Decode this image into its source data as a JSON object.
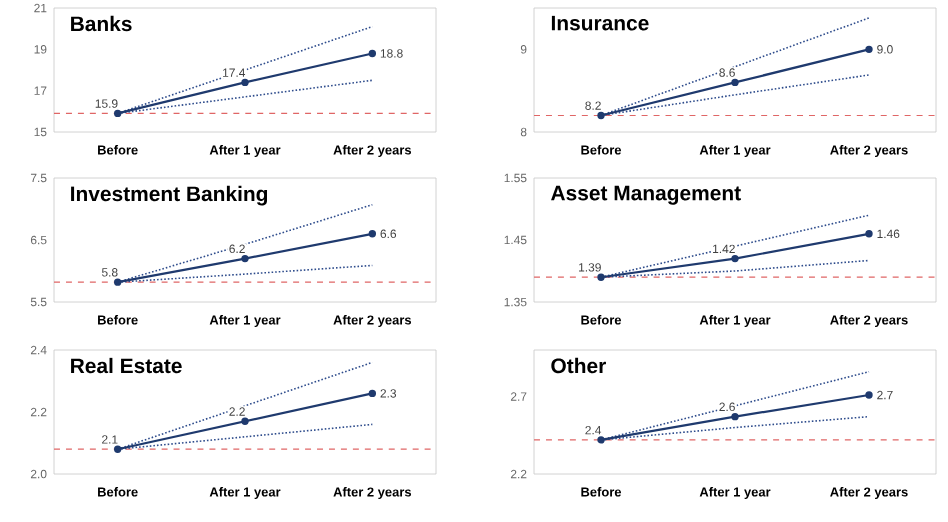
{
  "chart_data": [
    {
      "type": "line",
      "title": "Banks",
      "categories": [
        "Before",
        "After 1 year",
        "After 2 years"
      ],
      "ylim": [
        15,
        21
      ],
      "yticks": [
        15,
        17,
        19,
        21
      ],
      "series": [
        {
          "color": "#1f3a6e",
          "marker": "circle",
          "line_style": "solid",
          "values": [
            15.9,
            17.4,
            18.8
          ],
          "value_labels": [
            "15.9",
            "17.4",
            "18.8"
          ]
        },
        {
          "color": "#2e4c8c",
          "marker": "none",
          "line_style": "dotted",
          "values": [
            15.9,
            18.0,
            20.1
          ]
        },
        {
          "color": "#2e4c8c",
          "marker": "none",
          "line_style": "dotted",
          "values": [
            15.9,
            16.7,
            17.5
          ]
        }
      ],
      "ref_lines": [
        {
          "axis": "y",
          "value": 15.9,
          "color": "#e06666",
          "line_style": "dashed"
        }
      ]
    },
    {
      "type": "line",
      "title": "Insurance",
      "categories": [
        "Before",
        "After 1 year",
        "After 2 years"
      ],
      "ylim": [
        8,
        9.5
      ],
      "yticks": [
        8,
        9
      ],
      "series": [
        {
          "color": "#1f3a6e",
          "marker": "circle",
          "line_style": "solid",
          "values": [
            8.2,
            8.6,
            9.0
          ],
          "value_labels": [
            "8.2",
            "8.6",
            "9.0"
          ]
        },
        {
          "color": "#2e4c8c",
          "marker": "none",
          "line_style": "dotted",
          "values": [
            8.2,
            8.79,
            9.38
          ]
        },
        {
          "color": "#2e4c8c",
          "marker": "none",
          "line_style": "dotted",
          "values": [
            8.2,
            8.45,
            8.69
          ]
        }
      ],
      "ref_lines": [
        {
          "axis": "y",
          "value": 8.2,
          "color": "#e06666",
          "line_style": "dashed"
        }
      ]
    },
    {
      "type": "line",
      "title": "Investment Banking",
      "categories": [
        "Before",
        "After 1 year",
        "After 2 years"
      ],
      "ylim": [
        5.5,
        7.5
      ],
      "yticks": [
        5.5,
        6.5,
        7.5
      ],
      "series": [
        {
          "color": "#1f3a6e",
          "marker": "circle",
          "line_style": "solid",
          "values": [
            5.82,
            6.2,
            6.6
          ],
          "value_labels": [
            "5.8",
            "6.2",
            "6.6"
          ]
        },
        {
          "color": "#2e4c8c",
          "marker": "none",
          "line_style": "dotted",
          "values": [
            5.82,
            6.43,
            7.07
          ]
        },
        {
          "color": "#2e4c8c",
          "marker": "none",
          "line_style": "dotted",
          "values": [
            5.82,
            5.95,
            6.09
          ]
        }
      ],
      "ref_lines": [
        {
          "axis": "y",
          "value": 5.82,
          "color": "#e06666",
          "line_style": "dashed"
        }
      ]
    },
    {
      "type": "line",
      "title": "Asset Management",
      "categories": [
        "Before",
        "After 1 year",
        "After 2 years"
      ],
      "ylim": [
        1.35,
        1.55
      ],
      "yticks": [
        1.35,
        1.45,
        1.55
      ],
      "series": [
        {
          "color": "#1f3a6e",
          "marker": "circle",
          "line_style": "solid",
          "values": [
            1.39,
            1.42,
            1.46
          ],
          "value_labels": [
            "1.39",
            "1.42",
            "1.46"
          ]
        },
        {
          "color": "#2e4c8c",
          "marker": "none",
          "line_style": "dotted",
          "values": [
            1.39,
            1.44,
            1.49
          ]
        },
        {
          "color": "#2e4c8c",
          "marker": "none",
          "line_style": "dotted",
          "values": [
            1.39,
            1.4,
            1.417
          ]
        }
      ],
      "ref_lines": [
        {
          "axis": "y",
          "value": 1.39,
          "color": "#e06666",
          "line_style": "dashed"
        }
      ]
    },
    {
      "type": "line",
      "title": "Real Estate",
      "categories": [
        "Before",
        "After 1 year",
        "After 2 years"
      ],
      "ylim": [
        2.0,
        2.4
      ],
      "yticks": [
        {
          "value": 2.0,
          "label": "2.0"
        },
        2.2,
        2.4
      ],
      "series": [
        {
          "color": "#1f3a6e",
          "marker": "circle",
          "line_style": "solid",
          "values": [
            2.08,
            2.17,
            2.26
          ],
          "value_labels": [
            "2.1",
            "2.2",
            "2.3"
          ]
        },
        {
          "color": "#2e4c8c",
          "marker": "none",
          "line_style": "dotted",
          "values": [
            2.08,
            2.22,
            2.36
          ]
        },
        {
          "color": "#2e4c8c",
          "marker": "none",
          "line_style": "dotted",
          "values": [
            2.08,
            2.12,
            2.16
          ]
        }
      ],
      "ref_lines": [
        {
          "axis": "y",
          "value": 2.08,
          "color": "#e06666",
          "line_style": "dashed"
        }
      ]
    },
    {
      "type": "line",
      "title": "Other",
      "categories": [
        "Before",
        "After 1 year",
        "After 2 years"
      ],
      "ylim": [
        2.2,
        3.0
      ],
      "yticks": [
        2.2,
        2.7
      ],
      "series": [
        {
          "color": "#1f3a6e",
          "marker": "circle",
          "line_style": "solid",
          "values": [
            2.42,
            2.57,
            2.71
          ],
          "value_labels": [
            "2.4",
            "2.6",
            "2.7"
          ]
        },
        {
          "color": "#2e4c8c",
          "marker": "none",
          "line_style": "dotted",
          "values": [
            2.42,
            2.64,
            2.86
          ]
        },
        {
          "color": "#2e4c8c",
          "marker": "none",
          "line_style": "dotted",
          "values": [
            2.42,
            2.5,
            2.57
          ]
        }
      ],
      "ref_lines": [
        {
          "axis": "y",
          "value": 2.42,
          "color": "#e06666",
          "line_style": "dashed"
        }
      ]
    }
  ]
}
